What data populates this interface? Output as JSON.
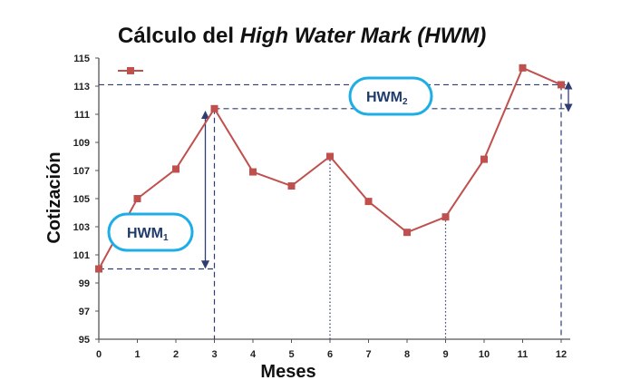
{
  "chart_data": {
    "type": "line",
    "title_prefix": "Cálculo del ",
    "title_italic": "High Water Mark (HWM)",
    "xlabel": "Meses",
    "ylabel": "Cotización",
    "x": [
      0,
      1,
      2,
      3,
      4,
      5,
      6,
      7,
      8,
      9,
      10,
      11,
      12
    ],
    "x_ticks": [
      "0",
      "1",
      "2",
      "3",
      "4",
      "5",
      "6",
      "7",
      "8",
      "9",
      "10",
      "11",
      "12"
    ],
    "y_ticks": [
      "95",
      "97",
      "99",
      "101",
      "103",
      "105",
      "107",
      "109",
      "111",
      "113",
      "115"
    ],
    "xlim": [
      0,
      12
    ],
    "ylim": [
      95,
      115
    ],
    "grid": false,
    "legend_marker_only": true,
    "series": [
      {
        "values": [
          100.0,
          105.0,
          107.1,
          111.4,
          106.9,
          105.9,
          108.0,
          104.8,
          102.6,
          103.7,
          107.8,
          114.3,
          113.1
        ],
        "color": "#c0504d"
      }
    ],
    "annotations": {
      "hwm1": {
        "label": "HWM",
        "subscript": "1",
        "from_y": 100.0,
        "to_y": 111.4,
        "at_x": 3
      },
      "hwm2": {
        "label": "HWM",
        "subscript": "2",
        "from_y": 111.4,
        "to_y": 113.1,
        "at_x": 12
      },
      "reference_lines_y": [
        111.4,
        113.1,
        100.0
      ],
      "dotted_drops_x": [
        6,
        9
      ]
    },
    "colors": {
      "series": "#c0504d",
      "guides": "#2e3e73",
      "bubble": "#1eaee6",
      "bubble_text": "#1f3b6b"
    }
  }
}
